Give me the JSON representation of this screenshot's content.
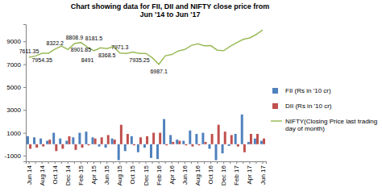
{
  "chart_data": {
    "type": "bar",
    "title": "Chart showing data for FII, DII and NIFTY close price from Jun '14 to Jun '17",
    "categories": [
      "Jun 14",
      null,
      "Aug 14",
      null,
      "Oct 14",
      null,
      "Dec 14",
      null,
      "Feb 15",
      null,
      "Apr 15",
      null,
      "Jun 15",
      null,
      "Aug 15",
      null,
      "Oct 15",
      null,
      "Dec 15",
      null,
      "Feb 16",
      null,
      "Apr 16",
      null,
      "Jun 16",
      null,
      "Aug 16",
      null,
      "Oct 16",
      null,
      "Dec 16",
      null,
      "Feb 17",
      null,
      "Apr 17",
      null,
      "Jun 17"
    ],
    "ylim": [
      -1500,
      10500
    ],
    "yticks": [
      -1000,
      1000,
      3000,
      5000,
      7000,
      9000
    ],
    "legend": "right",
    "series": [
      {
        "name": "FII (Rs in '10 cr)",
        "type": "bar",
        "color": "#4f81bd",
        "values": [
          700,
          600,
          500,
          300,
          1000,
          500,
          300,
          600,
          1000,
          1100,
          600,
          -200,
          -300,
          500,
          -1400,
          -600,
          700,
          -700,
          -300,
          -1200,
          -1300,
          2200,
          800,
          400,
          300,
          1200,
          900,
          1000,
          -400,
          -1400,
          -800,
          -150,
          900,
          2600,
          200,
          500,
          300
        ]
      },
      {
        "name": "DII (Rs in '10 cr)",
        "type": "bar",
        "color": "#c0504d",
        "values": [
          -400,
          -300,
          -200,
          400,
          -600,
          -400,
          700,
          -500,
          -300,
          -100,
          500,
          600,
          800,
          400,
          1700,
          900,
          -100,
          600,
          700,
          1000,
          1000,
          -100,
          200,
          300,
          -100,
          -200,
          -100,
          200,
          900,
          1700,
          1100,
          800,
          -200,
          -700,
          900,
          900,
          500
        ]
      },
      {
        "name": "NIFTY(Closing Price last trading day of month)",
        "type": "line",
        "color": "#9bbb59",
        "values": [
          7611.35,
          7721.3,
          7954.35,
          7964.8,
          8322.2,
          8588.25,
          8282.7,
          8808.9,
          8901.85,
          8491,
          8181.5,
          8433.65,
          8368.5,
          8532.85,
          7971.3,
          7948.9,
          8065.8,
          7935.25,
          7946.35,
          7563.55,
          6987.1,
          7738.4,
          7849.8,
          8160.1,
          8287.75,
          8638.5,
          8786.2,
          8611.15,
          8625.7,
          8224.5,
          8185.8,
          8561.3,
          8879.6,
          9173.75,
          9304.05,
          9600,
          10000
        ],
        "value_labels": [
          "7611.35",
          null,
          "7954.35",
          null,
          "8322.2",
          null,
          null,
          "8808.9",
          "8901.85",
          "8491",
          "8181.5",
          null,
          "8368.5",
          null,
          "7971.3",
          null,
          null,
          "7935.25",
          null,
          null,
          "6987.1",
          null,
          null,
          null,
          null,
          null,
          null,
          null,
          null,
          null,
          null,
          null,
          null,
          null,
          null,
          null,
          null
        ]
      }
    ]
  }
}
